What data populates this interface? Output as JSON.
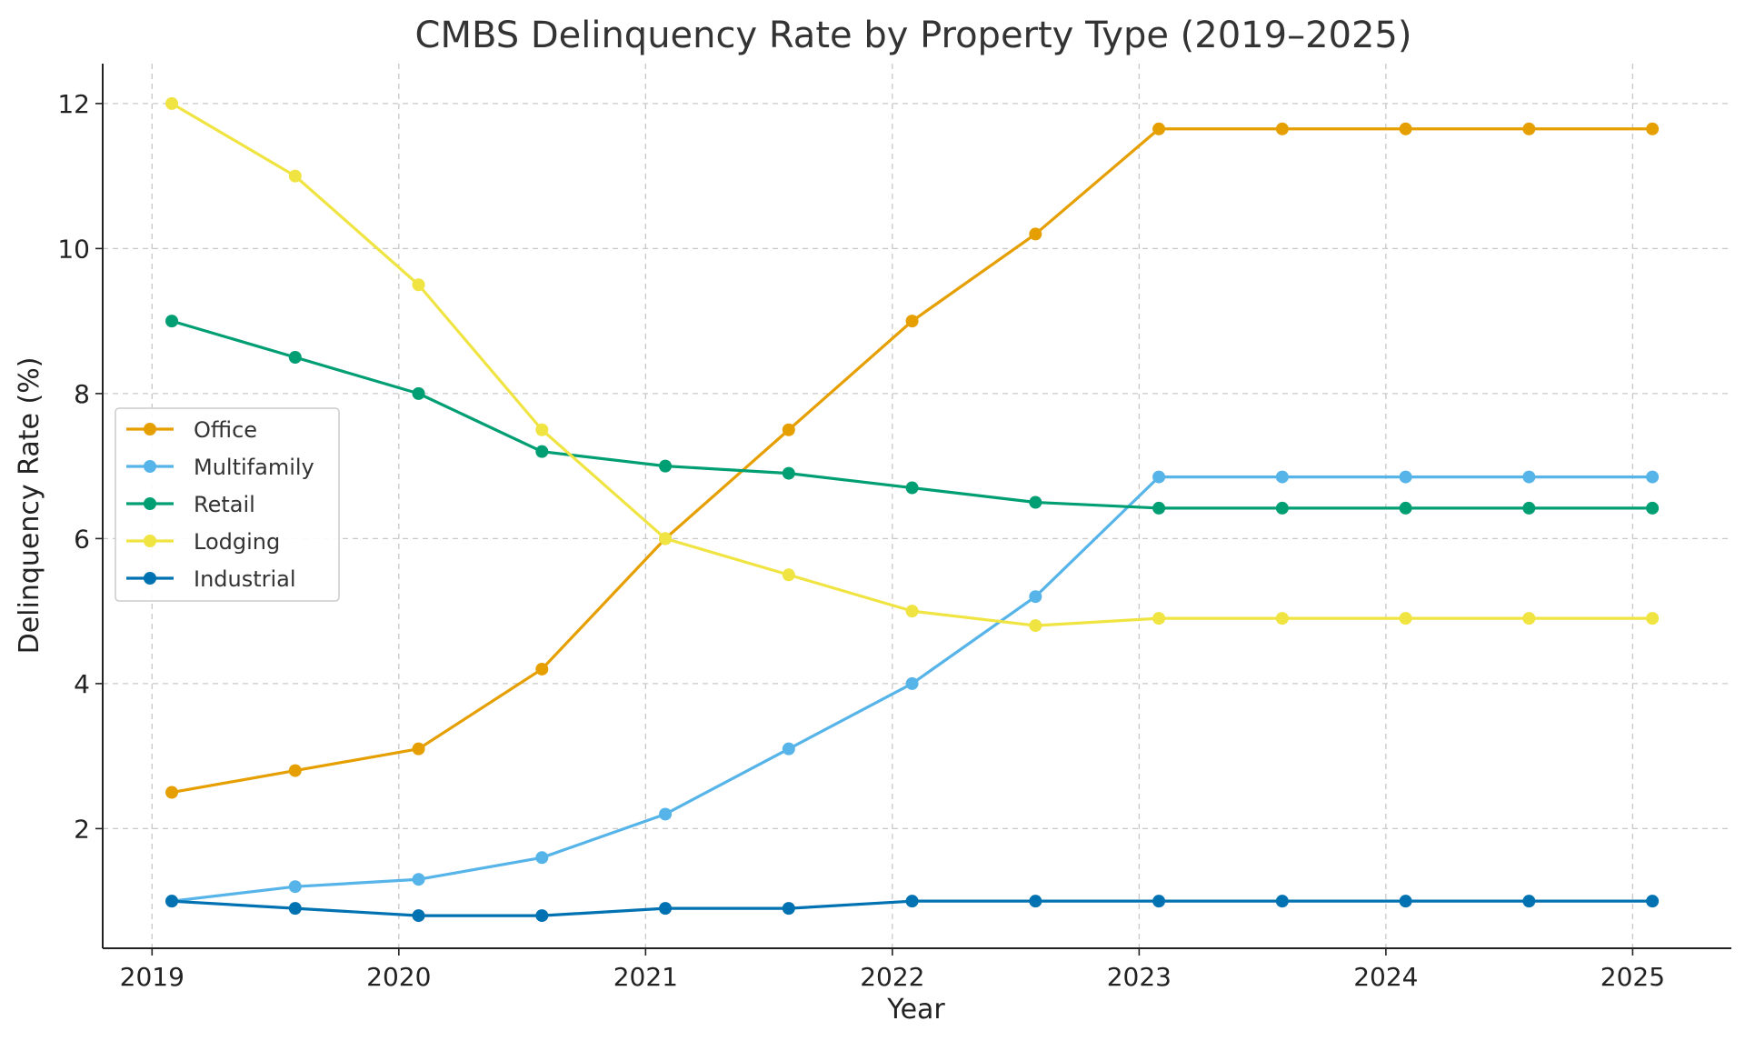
{
  "chart_data": {
    "type": "line",
    "title": "CMBS Delinquency Rate by Property Type (2019–2025)",
    "xlabel": "Year",
    "ylabel": "Delinquency Rate (%)",
    "x": [
      2019.08,
      2019.58,
      2020.08,
      2020.58,
      2021.08,
      2021.58,
      2022.08,
      2022.58,
      2023.08,
      2023.58,
      2024.08,
      2024.58,
      2025.08
    ],
    "xticks": [
      2019,
      2020,
      2021,
      2022,
      2023,
      2024,
      2025
    ],
    "xtick_labels": [
      "2019",
      "2020",
      "2021",
      "2022",
      "2023",
      "2024",
      "2025"
    ],
    "yticks": [
      2,
      4,
      6,
      8,
      10,
      12
    ],
    "ytick_labels": [
      "2",
      "4",
      "6",
      "8",
      "10",
      "12"
    ],
    "xlim": [
      2018.8,
      2025.4
    ],
    "ylim": [
      0.35,
      12.55
    ],
    "grid": true,
    "legend_position": "center-left",
    "series": [
      {
        "name": "Office",
        "color": "#E69F00",
        "values": [
          2.5,
          2.8,
          3.1,
          4.2,
          6.0,
          7.5,
          9.0,
          10.2,
          11.65,
          11.65,
          11.65,
          11.65,
          11.65
        ]
      },
      {
        "name": "Multifamily",
        "color": "#56B4E9",
        "values": [
          1.0,
          1.2,
          1.3,
          1.6,
          2.2,
          3.1,
          4.0,
          5.2,
          6.85,
          6.85,
          6.85,
          6.85,
          6.85
        ]
      },
      {
        "name": "Retail",
        "color": "#009E73",
        "values": [
          9.0,
          8.5,
          8.0,
          7.2,
          7.0,
          6.9,
          6.7,
          6.5,
          6.42,
          6.42,
          6.42,
          6.42,
          6.42
        ]
      },
      {
        "name": "Lodging",
        "color": "#F0E442",
        "values": [
          12.0,
          11.0,
          9.5,
          7.5,
          6.0,
          5.5,
          5.0,
          4.8,
          4.9,
          4.9,
          4.9,
          4.9,
          4.9
        ]
      },
      {
        "name": "Industrial",
        "color": "#0072B2",
        "values": [
          1.0,
          0.9,
          0.8,
          0.8,
          0.9,
          0.9,
          1.0,
          1.0,
          1.0,
          1.0,
          1.0,
          1.0,
          1.0
        ]
      }
    ]
  }
}
